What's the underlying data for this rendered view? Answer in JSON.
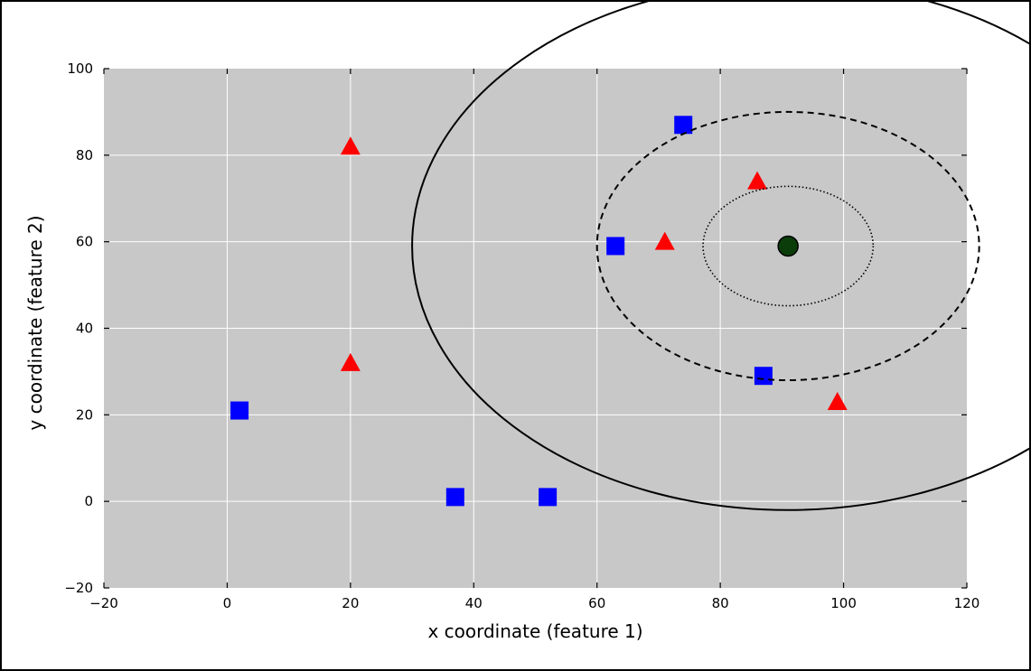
{
  "chart_data": {
    "type": "scatter",
    "xlabel": "x coordinate (feature 1)",
    "ylabel": "y coordinate (feature 2)",
    "xlim": [
      -20,
      120
    ],
    "ylim": [
      -20,
      100
    ],
    "xticks": [
      -20,
      0,
      20,
      40,
      60,
      80,
      100,
      120
    ],
    "yticks": [
      -20,
      0,
      20,
      40,
      60,
      80,
      100
    ],
    "grid": true,
    "colors": {
      "plot_background": "#c8c8c8",
      "grid": "#ffffff",
      "square_series": "#0000ff",
      "triangle_series": "#ff0000",
      "query_point": "#0a3d0a"
    },
    "series": [
      {
        "marker": "square",
        "color": "#0000ff",
        "points": [
          [
            2,
            21
          ],
          [
            37,
            1
          ],
          [
            52,
            1
          ],
          [
            63,
            59
          ],
          [
            74,
            87
          ],
          [
            87,
            29
          ]
        ]
      },
      {
        "marker": "triangle",
        "color": "#ff0000",
        "points": [
          [
            20,
            82
          ],
          [
            20,
            32
          ],
          [
            71,
            60
          ],
          [
            86,
            74
          ],
          [
            99,
            23
          ]
        ]
      },
      {
        "marker": "circle",
        "color": "#0a3d0a",
        "points": [
          [
            91,
            59
          ]
        ]
      }
    ],
    "annotations": [
      {
        "type": "circle",
        "center": [
          91,
          59
        ],
        "radius": 13.8,
        "linestyle": "dotted"
      },
      {
        "type": "circle",
        "center": [
          91,
          59
        ],
        "radius": 31,
        "linestyle": "dashed"
      },
      {
        "type": "circle",
        "center": [
          91,
          59
        ],
        "radius": 61,
        "linestyle": "solid"
      }
    ]
  }
}
